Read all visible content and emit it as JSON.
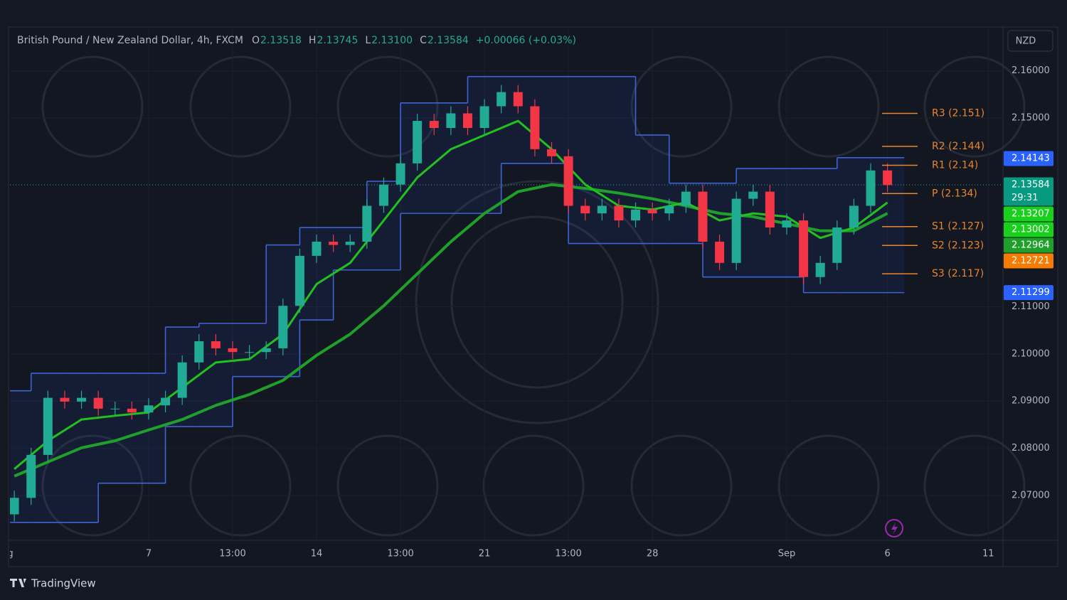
{
  "chart_data": {
    "type": "candlestick",
    "title": "British Pound / New Zealand Dollar, 4h, FXCM",
    "ohlc_header": [
      {
        "key": "O",
        "value": "2.13518"
      },
      {
        "key": "H",
        "value": "2.13745"
      },
      {
        "key": "L",
        "value": "2.13100"
      },
      {
        "key": "C",
        "value": "2.13584"
      }
    ],
    "change": "+0.00066 (+0.03%)",
    "currency": "NZD",
    "up_color": "#22ab94",
    "down_color": "#f23645",
    "x": [
      -4,
      -3.5,
      -3,
      -2.5,
      -2,
      -1.5,
      -1,
      -0.5,
      0,
      0.5,
      1,
      1.5,
      2,
      2.5,
      3,
      3.5,
      4,
      4.5,
      5,
      5.5,
      6,
      6.5,
      7,
      7.5,
      8,
      8.5,
      9,
      9.5,
      10,
      10.5,
      11,
      11.5,
      12,
      12.5,
      13,
      13.5,
      14,
      14.5,
      15,
      15.5,
      16,
      16.5,
      17,
      17.5,
      18,
      18.5,
      19,
      19.5,
      20,
      20.5,
      21,
      21.5,
      22
    ],
    "open": [
      2.066,
      2.0695,
      2.0786,
      2.0907,
      2.0899,
      2.0907,
      2.0884,
      2.0884,
      2.0876,
      2.0891,
      2.0907,
      2.0982,
      2.1027,
      2.1012,
      2.1004,
      2.1004,
      2.1012,
      2.1102,
      2.1208,
      2.1238,
      2.1231,
      2.1238,
      2.1314,
      2.1359,
      2.1404,
      2.1494,
      2.1479,
      2.151,
      2.1479,
      2.1525,
      2.1555,
      2.1525,
      2.1434,
      2.1419,
      2.1314,
      2.1298,
      2.1314,
      2.1283,
      2.1306,
      2.1298,
      2.1314,
      2.1344,
      2.1238,
      2.1193,
      2.1329,
      2.1344,
      2.1268,
      2.1283,
      2.1163,
      2.1193,
      2.1268,
      2.1314,
      2.1389
    ],
    "high": [
      2.071,
      2.0801,
      2.0922,
      2.0922,
      2.0922,
      2.0922,
      2.0899,
      2.0899,
      2.0906,
      2.0922,
      2.0997,
      2.1042,
      2.1042,
      2.1027,
      2.1019,
      2.1027,
      2.1117,
      2.1223,
      2.1253,
      2.1253,
      2.1253,
      2.1329,
      2.1374,
      2.1419,
      2.1509,
      2.1509,
      2.1525,
      2.1525,
      2.154,
      2.157,
      2.157,
      2.154,
      2.1449,
      2.1434,
      2.1329,
      2.1329,
      2.1329,
      2.1321,
      2.1321,
      2.1329,
      2.1359,
      2.1359,
      2.1253,
      2.1344,
      2.1359,
      2.1359,
      2.1298,
      2.1298,
      2.1208,
      2.1283,
      2.1329,
      2.1404,
      2.1404
    ],
    "low": [
      2.0645,
      2.068,
      2.0771,
      2.0884,
      2.0884,
      2.0869,
      2.0869,
      2.0861,
      2.0861,
      2.0876,
      2.0892,
      2.0967,
      2.0997,
      2.0989,
      2.0989,
      2.0989,
      2.0997,
      2.1087,
      2.1193,
      2.1216,
      2.1216,
      2.1223,
      2.1299,
      2.1344,
      2.1389,
      2.1464,
      2.1464,
      2.1464,
      2.1464,
      2.151,
      2.151,
      2.1419,
      2.1404,
      2.1299,
      2.1283,
      2.1283,
      2.1268,
      2.1268,
      2.1283,
      2.1283,
      2.1299,
      2.1223,
      2.1178,
      2.1178,
      2.1314,
      2.1253,
      2.1253,
      2.1148,
      2.1148,
      2.1178,
      2.1253,
      2.1299,
      2.1343
    ],
    "close": [
      2.0695,
      2.0786,
      2.0907,
      2.0899,
      2.0907,
      2.0884,
      2.0884,
      2.0876,
      2.0891,
      2.0907,
      2.0982,
      2.1027,
      2.1012,
      2.1004,
      2.1004,
      2.1012,
      2.1102,
      2.1208,
      2.1238,
      2.1231,
      2.1238,
      2.1314,
      2.1359,
      2.1404,
      2.1494,
      2.1479,
      2.151,
      2.1479,
      2.1525,
      2.1555,
      2.1525,
      2.1434,
      2.1419,
      2.1314,
      2.1298,
      2.1314,
      2.1283,
      2.1306,
      2.1298,
      2.1314,
      2.1344,
      2.1238,
      2.1193,
      2.1329,
      2.1344,
      2.1268,
      2.1283,
      2.1163,
      2.1193,
      2.1268,
      2.1314,
      2.1389,
      2.1358
    ],
    "lines": [
      {
        "color": "#1fa02a",
        "width": 4,
        "x": [
          -4,
          -3,
          -2,
          -1,
          0,
          1,
          2,
          3,
          4,
          5,
          6,
          7,
          8,
          9,
          10,
          11,
          12,
          13,
          14,
          15,
          16,
          17,
          18,
          19,
          20,
          21,
          22
        ],
        "values": [
          2.0741,
          2.0771,
          2.0801,
          2.0816,
          2.0839,
          2.0861,
          2.0891,
          2.0914,
          2.0944,
          2.0997,
          2.1042,
          2.1102,
          2.117,
          2.1238,
          2.1298,
          2.1344,
          2.1359,
          2.1351,
          2.1341,
          2.1329,
          2.1314,
          2.1298,
          2.1291,
          2.1276,
          2.1261,
          2.1261,
          2.1298
        ]
      },
      {
        "color": "#22c21e",
        "width": 3,
        "x": [
          -4,
          -3,
          -2,
          -1,
          0,
          1,
          2,
          3,
          4,
          5,
          6,
          7,
          8,
          9,
          10,
          11,
          12,
          13,
          14,
          15,
          16,
          17,
          18,
          19,
          20,
          21,
          22
        ],
        "values": [
          2.0756,
          2.0816,
          2.0861,
          2.0869,
          2.0876,
          2.0929,
          2.0982,
          2.0989,
          2.1042,
          2.1148,
          2.1193,
          2.1283,
          2.1374,
          2.1434,
          2.1464,
          2.1494,
          2.1434,
          2.1359,
          2.1314,
          2.1306,
          2.1321,
          2.1283,
          2.1298,
          2.1291,
          2.1246,
          2.1268,
          2.1321
        ]
      }
    ],
    "channel": {
      "color": "#3f63d6",
      "fill": "rgba(41,98,255,0.09)",
      "x": [
        -4,
        -3,
        -2,
        -1,
        0,
        1,
        2,
        3,
        4,
        5,
        6,
        7,
        8,
        9,
        10,
        11,
        12,
        13,
        14,
        15,
        16,
        17,
        18,
        19,
        20,
        21,
        22
      ],
      "upper": [
        2.0922,
        2.0959,
        2.0959,
        2.0959,
        2.0959,
        2.1057,
        2.1065,
        2.1065,
        2.1231,
        2.1268,
        2.1268,
        2.1366,
        2.1532,
        2.1532,
        2.1588,
        2.1588,
        2.1588,
        2.1588,
        2.1588,
        2.1464,
        2.1362,
        2.1362,
        2.1393,
        2.1393,
        2.1393,
        2.1416,
        2.1416
      ],
      "lower": [
        2.0643,
        2.0643,
        2.0643,
        2.0726,
        2.0726,
        2.0846,
        2.0846,
        2.0952,
        2.0952,
        2.1072,
        2.1178,
        2.1178,
        2.1298,
        2.1298,
        2.1298,
        2.1404,
        2.1404,
        2.1234,
        2.1234,
        2.1234,
        2.1234,
        2.1163,
        2.1163,
        2.1163,
        2.113,
        2.113,
        2.113
      ]
    },
    "pivots": [
      {
        "label": "R3 (2.151)",
        "value": 2.151
      },
      {
        "label": "R2 (2.144)",
        "value": 2.144
      },
      {
        "label": "R1 (2.14)",
        "value": 2.14
      },
      {
        "label": "P (2.134)",
        "value": 2.134
      },
      {
        "label": "S1 (2.127)",
        "value": 2.127
      },
      {
        "label": "S2 (2.123)",
        "value": 2.123
      },
      {
        "label": "S3 (2.117)",
        "value": 2.117
      }
    ],
    "pivot_color": "#e9862c",
    "price_badges": [
      {
        "value": 2.14143,
        "color": "#2962ff"
      },
      {
        "value": 2.13584,
        "color": "#089981",
        "countdown": "29:31"
      },
      {
        "value": 2.13207,
        "color": "#19d11d"
      },
      {
        "value": 2.13002,
        "color": "#19d11d"
      },
      {
        "value": 2.12964,
        "color": "#1fa02a"
      },
      {
        "value": 2.12721,
        "color": "#f57c00"
      },
      {
        "value": 2.11299,
        "color": "#2962ff"
      }
    ],
    "xlim": [
      -4.13,
      25.44
    ],
    "ylim": [
      2.0605,
      2.169
    ],
    "xticks": [
      {
        "value": -4.3,
        "label": "Aug"
      },
      {
        "value": 0,
        "label": "7"
      },
      {
        "value": 2.5,
        "label": "13:00"
      },
      {
        "value": 5,
        "label": "14"
      },
      {
        "value": 7.5,
        "label": "13:00"
      },
      {
        "value": 10,
        "label": "21"
      },
      {
        "value": 12.5,
        "label": "13:00"
      },
      {
        "value": 15,
        "label": "28"
      },
      {
        "value": 19,
        "label": "Sep"
      },
      {
        "value": 22,
        "label": "6"
      },
      {
        "value": 25,
        "label": "11"
      }
    ],
    "yticks": [
      {
        "value": 2.16,
        "label": "2.16000"
      },
      {
        "value": 2.15,
        "label": "2.15000"
      },
      {
        "value": 2.11,
        "label": "2.11000"
      },
      {
        "value": 2.1,
        "label": "2.10000"
      },
      {
        "value": 2.09,
        "label": "2.09000"
      },
      {
        "value": 2.08,
        "label": "2.08000"
      },
      {
        "value": 2.07,
        "label": "2.07000"
      }
    ],
    "grid": true
  },
  "brand": "TradingView"
}
